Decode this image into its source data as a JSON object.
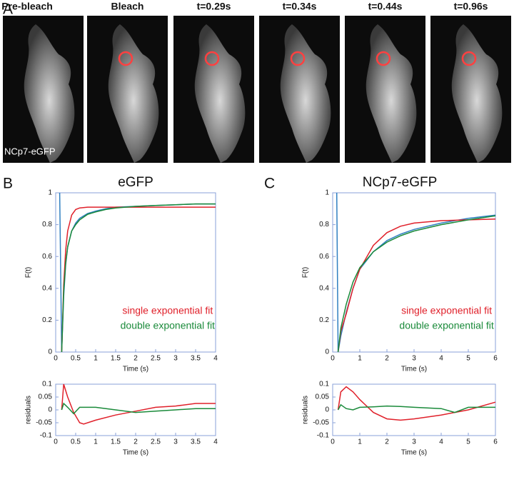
{
  "figure": {
    "panel_a": {
      "label": "A",
      "frames": [
        "Pre-bleach",
        "Bleach",
        "t=0.29s",
        "t=0.34s",
        "t=0.44s",
        "t=0.96s"
      ],
      "overlay": "NCp7-eGFP"
    },
    "panel_b_label": "B",
    "panel_c_label": "C"
  },
  "chart_data": [
    {
      "type": "line",
      "title": "eGFP",
      "xlabel": "Time (s)",
      "ylabel": "F(t)",
      "legend": "lower right",
      "xlim": [
        0,
        4
      ],
      "xticks": [
        0,
        0.5,
        1,
        1.5,
        2,
        2.5,
        3,
        3.5,
        4
      ],
      "ylim": [
        0,
        1
      ],
      "yticks": [
        0,
        0.2,
        0.4,
        0.6,
        0.8,
        1
      ],
      "x": [
        0.1,
        0.15,
        0.2,
        0.25,
        0.3,
        0.4,
        0.5,
        0.6,
        0.8,
        1,
        1.25,
        1.5,
        2,
        2.5,
        3,
        3.5,
        4
      ],
      "series": [
        {
          "color": "#2f7fc1",
          "values": [
            1,
            0,
            0.35,
            0.55,
            0.66,
            0.76,
            0.81,
            0.84,
            0.87,
            0.885,
            0.9,
            0.91,
            0.915,
            0.92,
            0.925,
            0.93,
            0.93
          ]
        },
        {
          "name": "single exponential fit",
          "color": "#e0202a",
          "values": [
            null,
            0,
            0.42,
            0.64,
            0.76,
            0.86,
            0.895,
            0.905,
            0.91,
            0.91,
            0.91,
            0.91,
            0.91,
            0.91,
            0.91,
            0.91,
            0.91
          ]
        },
        {
          "name": "double exponential fit",
          "color": "#1a8a3a",
          "values": [
            null,
            0,
            0.38,
            0.56,
            0.66,
            0.76,
            0.8,
            0.83,
            0.865,
            0.88,
            0.895,
            0.905,
            0.915,
            0.92,
            0.925,
            0.93,
            0.93
          ]
        }
      ]
    },
    {
      "type": "line",
      "xlabel": "Time (s)",
      "ylabel": "residuals",
      "xlim": [
        0,
        4
      ],
      "xticks": [
        0,
        0.5,
        1,
        1.5,
        2,
        2.5,
        3,
        3.5,
        4
      ],
      "ylim": [
        -0.1,
        0.1
      ],
      "yticks": [
        -0.1,
        -0.05,
        0,
        0.05,
        0.1
      ],
      "x": [
        0.15,
        0.2,
        0.3,
        0.45,
        0.6,
        0.7,
        1,
        1.5,
        2,
        2.5,
        3,
        3.5,
        4
      ],
      "series": [
        {
          "color": "#e0202a",
          "values": [
            0,
            0.1,
            0.05,
            -0.01,
            -0.05,
            -0.055,
            -0.04,
            -0.02,
            -0.005,
            0.01,
            0.015,
            0.025,
            0.025
          ]
        },
        {
          "color": "#1a8a3a",
          "values": [
            0,
            0.025,
            0.01,
            -0.015,
            0.01,
            0.01,
            0.01,
            0,
            -0.01,
            -0.005,
            0,
            0.005,
            0.005
          ]
        }
      ]
    },
    {
      "type": "line",
      "title": "NCp7-eGFP",
      "xlabel": "Time (s)",
      "ylabel": "F(t)",
      "legend": "lower right",
      "xlim": [
        0,
        6
      ],
      "xticks": [
        0,
        1,
        2,
        3,
        4,
        5,
        6
      ],
      "ylim": [
        0,
        1
      ],
      "yticks": [
        0,
        0.2,
        0.4,
        0.6,
        0.8,
        1
      ],
      "x": [
        0.15,
        0.2,
        0.3,
        0.5,
        0.75,
        1,
        1.5,
        2,
        2.5,
        3,
        4,
        5,
        6
      ],
      "series": [
        {
          "color": "#2f7fc1",
          "values": [
            1,
            0,
            0.1,
            0.25,
            0.4,
            0.52,
            0.63,
            0.7,
            0.74,
            0.77,
            0.81,
            0.84,
            0.86
          ]
        },
        {
          "name": "single exponential fit",
          "color": "#e0202a",
          "values": [
            null,
            0,
            0.13,
            0.24,
            0.4,
            0.52,
            0.67,
            0.75,
            0.79,
            0.81,
            0.825,
            0.83,
            0.835
          ]
        },
        {
          "name": "double exponential fit",
          "color": "#1a8a3a",
          "values": [
            null,
            0,
            0.15,
            0.3,
            0.44,
            0.53,
            0.63,
            0.69,
            0.73,
            0.76,
            0.8,
            0.83,
            0.855
          ]
        }
      ]
    },
    {
      "type": "line",
      "xlabel": "Time (s)",
      "ylabel": "residuals",
      "xlim": [
        0,
        6
      ],
      "xticks": [
        0,
        1,
        2,
        3,
        4,
        5,
        6
      ],
      "ylim": [
        -0.1,
        0.1
      ],
      "yticks": [
        -0.1,
        -0.05,
        0,
        0.05,
        0.1
      ],
      "x": [
        0.2,
        0.3,
        0.5,
        0.75,
        1,
        1.5,
        2,
        2.5,
        3,
        4,
        4.5,
        5,
        6
      ],
      "series": [
        {
          "color": "#e0202a",
          "values": [
            0,
            0.07,
            0.09,
            0.07,
            0.04,
            -0.01,
            -0.035,
            -0.04,
            -0.035,
            -0.02,
            -0.01,
            0,
            0.03
          ]
        },
        {
          "color": "#1a8a3a",
          "values": [
            0,
            0.02,
            0.005,
            0,
            0.01,
            0.012,
            0.015,
            0.013,
            0.01,
            0.005,
            -0.01,
            0.01,
            0.01
          ]
        }
      ]
    }
  ]
}
